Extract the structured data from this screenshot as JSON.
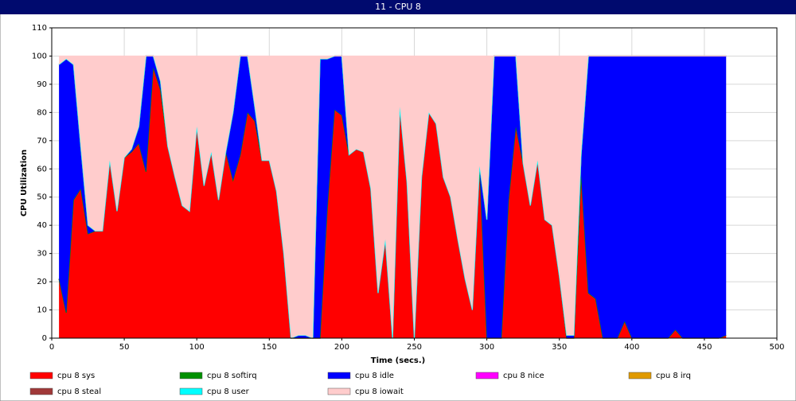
{
  "window_title": "11 - CPU 8",
  "chart_data": {
    "type": "stacked_area",
    "xlabel": "Time (secs.)",
    "ylabel": "CPU Utilization",
    "xlim": [
      0,
      500
    ],
    "xticks": [
      0,
      50,
      100,
      150,
      200,
      250,
      300,
      350,
      400,
      450,
      500
    ],
    "ylim": [
      0,
      110
    ],
    "yticks": [
      0,
      10,
      20,
      30,
      40,
      50,
      60,
      70,
      80,
      90,
      100,
      110
    ],
    "grid": true,
    "x": [
      5,
      10,
      15,
      20,
      25,
      30,
      35,
      40,
      45,
      50,
      55,
      60,
      65,
      70,
      75,
      80,
      85,
      90,
      95,
      100,
      105,
      110,
      115,
      120,
      125,
      130,
      135,
      140,
      145,
      150,
      155,
      160,
      165,
      170,
      175,
      180,
      185,
      190,
      195,
      200,
      205,
      210,
      215,
      220,
      225,
      230,
      235,
      240,
      245,
      250,
      255,
      260,
      265,
      270,
      275,
      280,
      285,
      290,
      295,
      300,
      305,
      310,
      315,
      320,
      325,
      330,
      335,
      340,
      345,
      350,
      355,
      360,
      365,
      370,
      375,
      380,
      385,
      390,
      395,
      400,
      405,
      410,
      415,
      420,
      425,
      430,
      435,
      440,
      445,
      450,
      455,
      460,
      465
    ],
    "series": [
      {
        "name": "cpu 8 sys",
        "color": "#ff0000",
        "values": [
          21,
          9,
          49,
          53,
          37,
          38,
          38,
          63,
          45,
          64,
          66,
          69,
          59,
          96,
          88,
          68,
          57,
          47,
          45,
          75,
          54,
          66,
          49,
          66,
          56,
          65,
          80,
          77,
          63,
          63,
          52,
          30,
          0,
          0,
          0,
          0,
          0,
          46,
          81,
          79,
          65,
          67,
          66,
          53,
          16,
          35,
          0,
          82,
          55,
          0,
          57,
          80,
          76,
          57,
          50,
          35,
          21,
          10,
          61,
          0,
          0,
          0,
          49,
          75,
          62,
          47,
          63,
          42,
          40,
          22,
          0,
          0,
          58,
          16,
          14,
          0,
          0,
          0,
          6,
          0,
          0,
          0,
          0,
          0,
          0,
          3,
          0,
          0,
          0,
          0,
          0,
          0,
          1
        ]
      },
      {
        "name": "cpu 8 softirq",
        "color": "#009000",
        "values": [
          0,
          0,
          0,
          0,
          0,
          0,
          0,
          0,
          0,
          0,
          0,
          0,
          0,
          0,
          0,
          0,
          0,
          0,
          0,
          0,
          0,
          0,
          0,
          0,
          0,
          0,
          0,
          0,
          0,
          0,
          0,
          0,
          0,
          0,
          0,
          0,
          0,
          0,
          0,
          0,
          0,
          0,
          0,
          0,
          0,
          0,
          0,
          0,
          0,
          0,
          0,
          0,
          0,
          0,
          0,
          0,
          0,
          0,
          0,
          0,
          0,
          0,
          0,
          0,
          0,
          0,
          0,
          0,
          0,
          0,
          0,
          0,
          0,
          0,
          0,
          0,
          0,
          0,
          0,
          0,
          0,
          0,
          0,
          0,
          0,
          0,
          0,
          0,
          0,
          0,
          0,
          0,
          0
        ]
      },
      {
        "name": "cpu 8 idle",
        "color": "#0000ff",
        "values": [
          76,
          90,
          48,
          15,
          3,
          0,
          0,
          0,
          0,
          0,
          1,
          6,
          41,
          4,
          3,
          0,
          0,
          0,
          0,
          0,
          0,
          0,
          0,
          0,
          24,
          35,
          20,
          5,
          0,
          0,
          0,
          0,
          0,
          1,
          1,
          0,
          99,
          53,
          19,
          21,
          0,
          0,
          0,
          0,
          0,
          0,
          0,
          0,
          0,
          0,
          0,
          0,
          0,
          0,
          0,
          0,
          0,
          0,
          0,
          42,
          100,
          100,
          51,
          25,
          0,
          0,
          0,
          0,
          0,
          0,
          1,
          1,
          7,
          84,
          86,
          100,
          100,
          100,
          94,
          100,
          100,
          100,
          100,
          100,
          100,
          97,
          100,
          100,
          100,
          100,
          100,
          100,
          99
        ]
      },
      {
        "name": "cpu 8 nice",
        "color": "#ff00ff",
        "values": [
          0,
          0,
          0,
          0,
          0,
          0,
          0,
          0,
          0,
          0,
          0,
          0,
          0,
          0,
          0,
          0,
          0,
          0,
          0,
          0,
          0,
          0,
          0,
          0,
          0,
          0,
          0,
          0,
          0,
          0,
          0,
          0,
          0,
          0,
          0,
          0,
          0,
          0,
          0,
          0,
          0,
          0,
          0,
          0,
          0,
          0,
          0,
          0,
          0,
          0,
          0,
          0,
          0,
          0,
          0,
          0,
          0,
          0,
          0,
          0,
          0,
          0,
          0,
          0,
          0,
          0,
          0,
          0,
          0,
          0,
          0,
          0,
          0,
          0,
          0,
          0,
          0,
          0,
          0,
          0,
          0,
          0,
          0,
          0,
          0,
          0,
          0,
          0,
          0,
          0,
          0,
          0,
          0
        ]
      },
      {
        "name": "cpu 8 irq",
        "color": "#e09a00",
        "values": [
          0,
          0,
          0,
          0,
          0,
          0,
          0,
          0,
          0,
          0,
          0,
          0,
          0,
          0,
          0,
          0,
          0,
          0,
          0,
          0,
          0,
          0,
          0,
          0,
          0,
          0,
          0,
          0,
          0,
          0,
          0,
          0,
          0,
          0,
          0,
          0,
          0,
          0,
          0,
          0,
          0,
          0,
          0,
          0,
          0,
          0,
          0,
          0,
          0,
          0,
          0,
          0,
          0,
          0,
          0,
          0,
          0,
          0,
          0,
          0,
          0,
          0,
          0,
          0,
          0,
          0,
          0,
          0,
          0,
          0,
          0,
          0,
          0,
          0,
          0,
          0,
          0,
          0,
          0,
          0,
          0,
          0,
          0,
          0,
          0,
          0,
          0,
          0,
          0,
          0,
          0,
          0,
          0
        ]
      },
      {
        "name": "cpu 8 steal",
        "color": "#a03838",
        "values": [
          0,
          0,
          0,
          0,
          0,
          0,
          0,
          0,
          0,
          0,
          0,
          0,
          0,
          0,
          0,
          0,
          0,
          0,
          0,
          0,
          0,
          0,
          0,
          0,
          0,
          0,
          0,
          0,
          0,
          0,
          0,
          0,
          0,
          0,
          0,
          0,
          0,
          0,
          0,
          0,
          0,
          0,
          0,
          0,
          0,
          0,
          0,
          0,
          0,
          0,
          0,
          0,
          0,
          0,
          0,
          0,
          0,
          0,
          0,
          0,
          0,
          0,
          0,
          0,
          0,
          0,
          0,
          0,
          0,
          0,
          0,
          0,
          0,
          0,
          0,
          0,
          0,
          0,
          0,
          0,
          0,
          0,
          0,
          0,
          0,
          0,
          0,
          0,
          0,
          0,
          0,
          0,
          0
        ]
      },
      {
        "name": "cpu 8 user",
        "color": "#00ffff",
        "values": [
          0,
          0,
          0,
          0,
          0,
          0,
          0,
          0,
          0,
          0,
          0,
          0,
          0,
          0,
          0,
          0,
          0,
          0,
          0,
          0,
          0,
          0,
          0,
          0,
          0,
          0,
          0,
          0,
          0,
          0,
          0,
          0,
          0,
          0,
          0,
          0,
          0,
          0,
          0,
          0,
          0,
          0,
          0,
          0,
          0,
          0,
          0,
          0,
          0,
          0,
          0,
          0,
          0,
          0,
          0,
          0,
          0,
          0,
          0,
          0,
          0,
          0,
          0,
          0,
          0,
          0,
          0,
          0,
          0,
          0,
          0,
          0,
          0,
          0,
          0,
          0,
          0,
          0,
          0,
          0,
          0,
          0,
          0,
          0,
          0,
          0,
          0,
          0,
          0,
          0,
          0,
          0,
          0
        ]
      },
      {
        "name": "cpu 8 iowait",
        "color": "#ffcccc",
        "values": [
          3,
          1,
          3,
          32,
          60,
          62,
          62,
          37,
          55,
          36,
          33,
          25,
          0,
          0,
          9,
          32,
          43,
          53,
          55,
          25,
          46,
          34,
          51,
          34,
          20,
          0,
          0,
          18,
          37,
          37,
          48,
          70,
          100,
          99,
          99,
          100,
          1,
          1,
          0,
          0,
          35,
          33,
          34,
          47,
          84,
          65,
          100,
          18,
          45,
          100,
          43,
          20,
          24,
          43,
          50,
          65,
          79,
          90,
          39,
          58,
          0,
          0,
          0,
          0,
          38,
          53,
          37,
          58,
          60,
          78,
          99,
          99,
          35,
          0,
          0,
          0,
          0,
          0,
          0,
          0,
          0,
          0,
          0,
          0,
          0,
          0,
          0,
          0,
          0,
          0,
          0,
          0,
          0
        ]
      }
    ]
  }
}
